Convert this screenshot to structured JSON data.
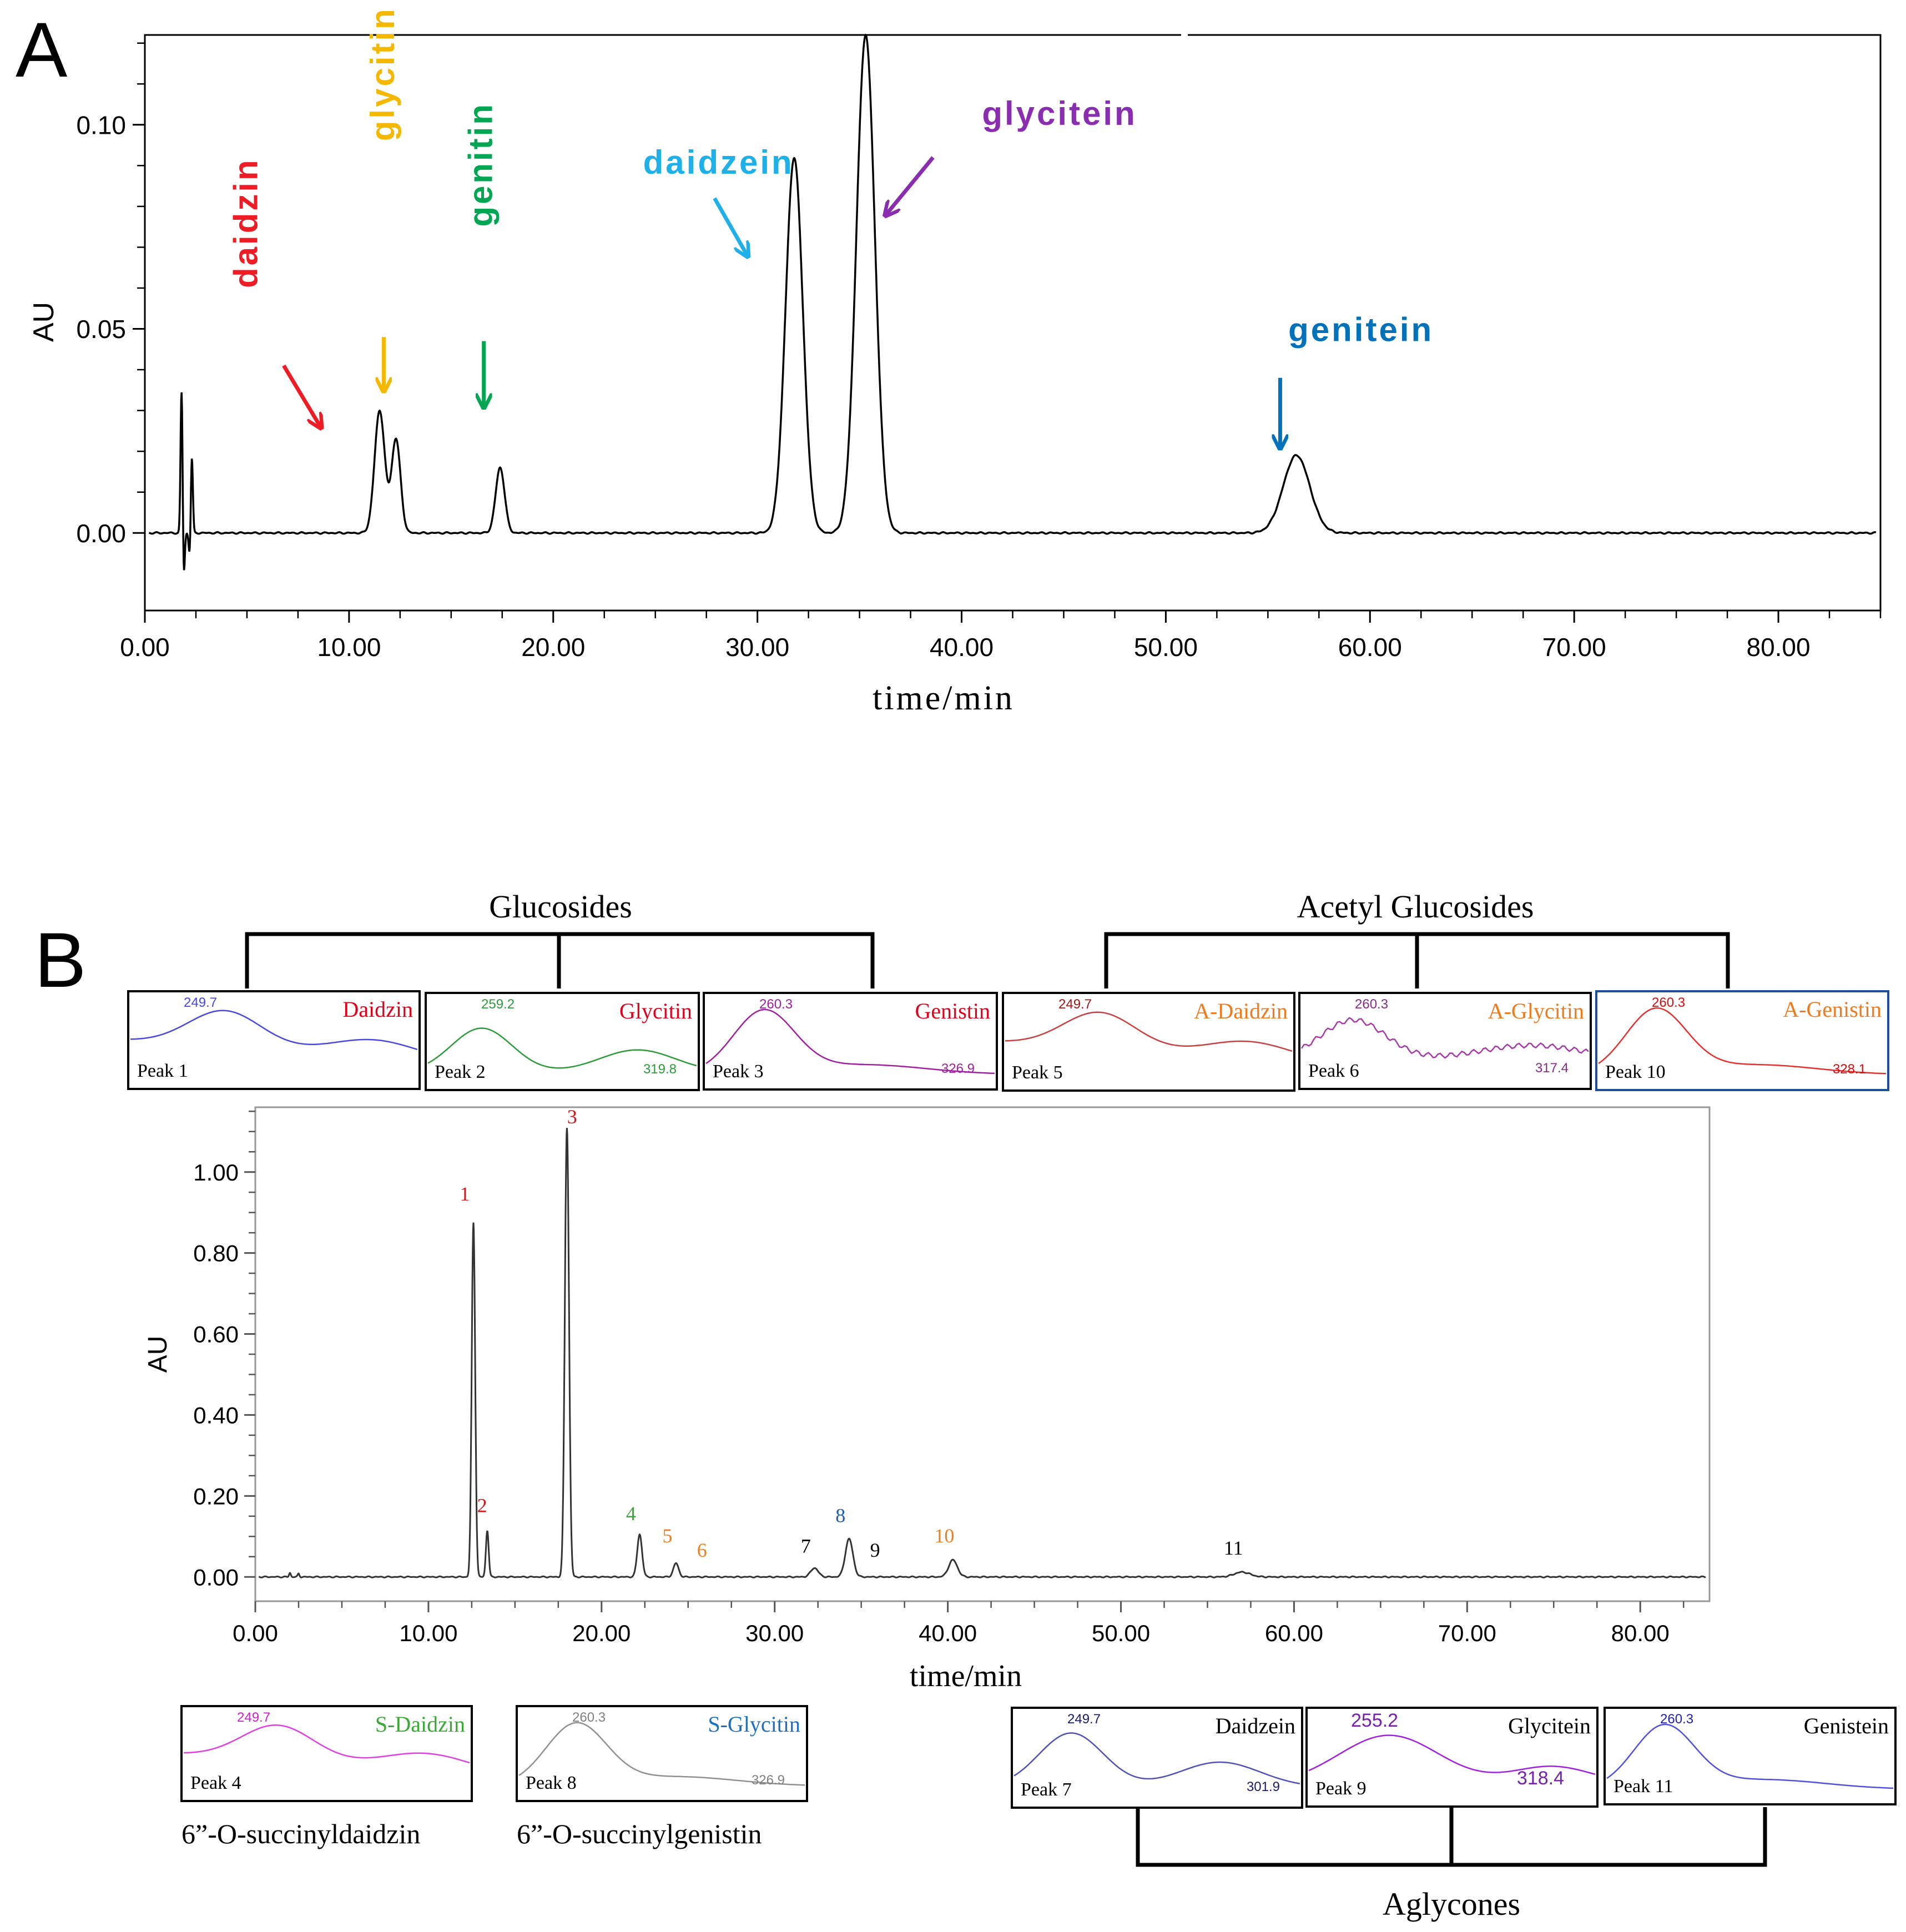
{
  "figure": {
    "panel_a_label": "A",
    "panel_b_label": "B"
  },
  "chart_data": [
    {
      "id": "A",
      "type": "line",
      "title": "",
      "xlabel": "time/min",
      "ylabel": "AU",
      "xlim": [
        0,
        85
      ],
      "ylim": [
        -0.019,
        0.122
      ],
      "xticks": [
        0,
        10,
        20,
        30,
        40,
        50,
        60,
        70,
        80
      ],
      "xtick_labels": [
        "0.00",
        "10.00",
        "20.00",
        "30.00",
        "40.00",
        "50.00",
        "60.00",
        "70.00",
        "80.00"
      ],
      "yticks": [
        0,
        0.05,
        0.1
      ],
      "ytick_labels": [
        "0.00",
        "0.05",
        "0.10"
      ],
      "grid": false,
      "baseline": 0.0,
      "peaks": [
        {
          "t": 1.8,
          "h": 0.036,
          "w": 0.05
        },
        {
          "t": 2.3,
          "h": 0.019,
          "w": 0.05
        },
        {
          "t": 11.5,
          "h": 0.03,
          "w": 0.25
        },
        {
          "t": 12.3,
          "h": 0.023,
          "w": 0.22
        },
        {
          "t": 17.4,
          "h": 0.016,
          "w": 0.22
        },
        {
          "t": 31.8,
          "h": 0.092,
          "w": 0.42
        },
        {
          "t": 35.3,
          "h": 0.122,
          "w": 0.45
        },
        {
          "t": 56.4,
          "h": 0.019,
          "w": 0.65
        }
      ],
      "dips": [
        {
          "t": 1.9,
          "h": -0.012,
          "w": 0.05
        },
        {
          "t": 2.2,
          "h": -0.006,
          "w": 0.05
        }
      ],
      "annotations": [
        {
          "text": "daidzin",
          "color": "#ee1c25",
          "x": 5.5,
          "y": 0.06,
          "rotate": -90,
          "arrow_from": [
            6.8,
            0.041
          ],
          "arrow_to": [
            8.6,
            0.026
          ]
        },
        {
          "text": "glycitin",
          "color": "#f5b800",
          "x": 12.2,
          "y": 0.096,
          "rotate": -90,
          "arrow_from": [
            11.7,
            0.048
          ],
          "arrow_to": [
            11.7,
            0.035
          ]
        },
        {
          "text": "genitin",
          "color": "#00a651",
          "x": 17.0,
          "y": 0.075,
          "rotate": -90,
          "arrow_from": [
            16.6,
            0.047
          ],
          "arrow_to": [
            16.6,
            0.031
          ]
        },
        {
          "text": "daidzein",
          "color": "#1eb0e8",
          "x": 24.4,
          "y": 0.088,
          "rotate": 0,
          "arrow_from": [
            27.9,
            0.082
          ],
          "arrow_to": [
            29.5,
            0.068
          ]
        },
        {
          "text": "glycitein",
          "color": "#8a2db0",
          "x": 41.0,
          "y": 0.1,
          "rotate": 0,
          "arrow_from": [
            38.6,
            0.092
          ],
          "arrow_to": [
            36.3,
            0.078
          ]
        },
        {
          "text": "genitein",
          "color": "#0072bc",
          "x": 56.0,
          "y": 0.047,
          "rotate": 0,
          "arrow_from": [
            55.6,
            0.038
          ],
          "arrow_to": [
            55.6,
            0.021
          ]
        }
      ]
    },
    {
      "id": "B",
      "type": "line",
      "title": "",
      "xlabel": "time/min",
      "ylabel": "AU",
      "xlim": [
        0,
        84
      ],
      "ylim": [
        -0.06,
        1.16
      ],
      "xticks": [
        0,
        10,
        20,
        30,
        40,
        50,
        60,
        70,
        80
      ],
      "xtick_labels": [
        "0.00",
        "10.00",
        "20.00",
        "30.00",
        "40.00",
        "50.00",
        "60.00",
        "70.00",
        "80.00"
      ],
      "yticks": [
        0,
        0.2,
        0.4,
        0.6,
        0.8,
        1.0
      ],
      "ytick_labels": [
        "0.00",
        "0.20",
        "0.40",
        "0.60",
        "0.80",
        "1.00"
      ],
      "grid": false,
      "baseline": 0.0,
      "peaks": [
        {
          "t": 2.0,
          "h": 0.01,
          "w": 0.05
        },
        {
          "t": 2.5,
          "h": 0.008,
          "w": 0.05
        },
        {
          "t": 12.6,
          "h": 0.875,
          "w": 0.1
        },
        {
          "t": 13.4,
          "h": 0.115,
          "w": 0.08
        },
        {
          "t": 18.0,
          "h": 1.11,
          "w": 0.12
        },
        {
          "t": 22.2,
          "h": 0.105,
          "w": 0.14
        },
        {
          "t": 24.3,
          "h": 0.034,
          "w": 0.15
        },
        {
          "t": 32.3,
          "h": 0.022,
          "w": 0.22
        },
        {
          "t": 34.3,
          "h": 0.094,
          "w": 0.22
        },
        {
          "t": 40.3,
          "h": 0.042,
          "w": 0.25
        },
        {
          "t": 57.0,
          "h": 0.012,
          "w": 0.45
        }
      ],
      "peak_labels": [
        {
          "text": "1",
          "color": "#d0191f",
          "t": 12.1,
          "y": 0.93
        },
        {
          "text": "2",
          "color": "#d0191f",
          "t": 13.1,
          "y": 0.16
        },
        {
          "text": "3",
          "color": "#d0191f",
          "t": 18.3,
          "y": 1.12
        },
        {
          "text": "4",
          "color": "#3aa935",
          "t": 21.7,
          "y": 0.14
        },
        {
          "text": "5",
          "color": "#ee7f22",
          "t": 23.8,
          "y": 0.085
        },
        {
          "text": "6",
          "color": "#ee7f22",
          "t": 25.8,
          "y": 0.05
        },
        {
          "text": "7",
          "color": "#000000",
          "t": 31.8,
          "y": 0.06
        },
        {
          "text": "8",
          "color": "#1f5fae",
          "t": 33.8,
          "y": 0.135
        },
        {
          "text": "9",
          "color": "#000000",
          "t": 35.8,
          "y": 0.05
        },
        {
          "text": "10",
          "color": "#ee7f22",
          "t": 39.8,
          "y": 0.085
        },
        {
          "text": "11",
          "color": "#000000",
          "t": 56.5,
          "y": 0.055
        }
      ]
    }
  ],
  "groups": {
    "glucosides": "Glucosides",
    "acetyl_glucosides": "Acetyl Glucosides",
    "aglycones": "Aglycones"
  },
  "spectra": [
    {
      "id": "p1",
      "peak": "Peak 1",
      "name": "Daidzin",
      "name_color": "#e2001a",
      "line_color": "#4848e0",
      "v1": "249.7",
      "v1_color": "#4848e0",
      "v2": "",
      "v2_color": "#4848e0",
      "shape": "a"
    },
    {
      "id": "p2",
      "peak": "Peak 2",
      "name": "Glycitin",
      "name_color": "#e2001a",
      "line_color": "#2e9a3a",
      "v1": "259.2",
      "v1_color": "#2e9a3a",
      "v2": "319.8",
      "v2_color": "#2e9a3a",
      "shape": "b"
    },
    {
      "id": "p3",
      "peak": "Peak 3",
      "name": "Genistin",
      "name_color": "#e2001a",
      "line_color": "#a020a0",
      "v1": "260.3",
      "v1_color": "#a020a0",
      "v2": "326.9",
      "v2_color": "#a020a0",
      "shape": "c"
    },
    {
      "id": "p5",
      "peak": "Peak 5",
      "name": "A-Daidzin",
      "name_color": "#f07a1e",
      "line_color": "#c84040",
      "v1": "249.7",
      "v1_color": "#a01818",
      "v2": "",
      "v2_color": "#a01818",
      "shape": "a"
    },
    {
      "id": "p6",
      "peak": "Peak 6",
      "name": "A-Glycitin",
      "name_color": "#f07a1e",
      "line_color": "#a83aa8",
      "v1": "260.3",
      "v1_color": "#8a2a8a",
      "v2": "317.4",
      "v2_color": "#8a2a8a",
      "shape": "e"
    },
    {
      "id": "p10",
      "peak": "Peak 10",
      "name": "A-Genistin",
      "name_color": "#f07a1e",
      "line_color": "#e53030",
      "v1": "260.3",
      "v1_color": "#d01010",
      "v2": "328.1",
      "v2_color": "#d01010",
      "shape": "c"
    },
    {
      "id": "p4",
      "peak": "Peak 4",
      "name": "S-Daidzin",
      "name_color": "#3aa935",
      "line_color": "#e040e0",
      "v1": "249.7",
      "v1_color": "#d020d0",
      "v2": "",
      "v2_color": "#d020d0",
      "shape": "a",
      "caption": "6”-O-succinyldaidzin"
    },
    {
      "id": "p8",
      "peak": "Peak 8",
      "name": "S-Glycitin",
      "name_color": "#1f6fc0",
      "line_color": "#909090",
      "v1": "260.3",
      "v1_color": "#808080",
      "v2": "326.9",
      "v2_color": "#808080",
      "shape": "c",
      "caption": "6”-O-succinylgenistin"
    },
    {
      "id": "p7",
      "peak": "Peak 7",
      "name": "Daidzein",
      "name_color": "#000000",
      "line_color": "#5050b8",
      "v1": "249.7",
      "v1_color": "#1a1a70",
      "v2": "301.9",
      "v2_color": "#1a1a70",
      "shape": "d"
    },
    {
      "id": "p9",
      "peak": "Peak 9",
      "name": "Glycitein",
      "name_color": "#000000",
      "line_color": "#a020e0",
      "v1": "255.2",
      "v1_color": "#7a20b0",
      "v2": "318.4",
      "v2_color": "#7a20b0",
      "shape": "f"
    },
    {
      "id": "p11",
      "peak": "Peak 11",
      "name": "Genistein",
      "name_color": "#000000",
      "line_color": "#5050e0",
      "v1": "260.3",
      "v1_color": "#2020c0",
      "v2": "",
      "v2_color": "#2020c0",
      "shape": "c"
    }
  ]
}
